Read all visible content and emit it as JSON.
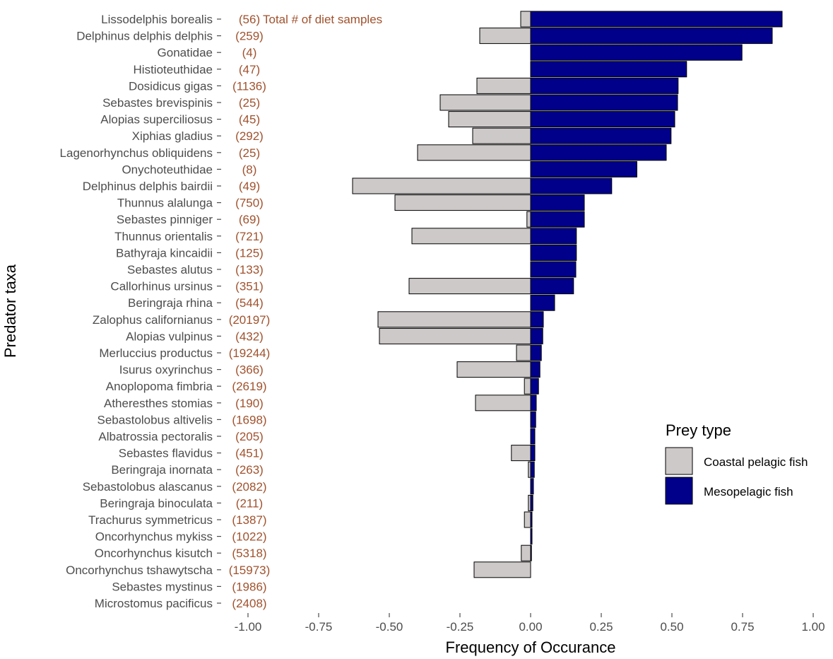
{
  "chart_data": {
    "type": "bar",
    "orientation": "horizontal",
    "xlabel": "Frequency of Occurance",
    "ylabel": "Predator taxa",
    "xlim": [
      -1.0,
      1.0
    ],
    "xticks": [
      -1.0,
      -0.75,
      -0.5,
      -0.25,
      0.0,
      0.25,
      0.5,
      0.75,
      1.0
    ],
    "xtick_labels": [
      "-1.00",
      "-0.75",
      "-0.50",
      "-0.25",
      "0.00",
      "0.25",
      "0.50",
      "0.75",
      "1.00"
    ],
    "grid": false,
    "legend_title": "Prey type",
    "legend_position": "right",
    "annotation": "Total # of diet samples",
    "categories": [
      "Lissodelphis borealis",
      "Delphinus delphis delphis",
      "Gonatidae",
      "Histioteuthidae",
      "Dosidicus gigas",
      "Sebastes brevispinis",
      "Alopias superciliosus",
      "Xiphias gladius",
      "Lagenorhynchus obliquidens",
      "Onychoteuthidae",
      "Delphinus delphis bairdii",
      "Thunnus alalunga",
      "Sebastes pinniger",
      "Thunnus orientalis",
      "Bathyraja kincaidii",
      "Sebastes alutus",
      "Callorhinus ursinus",
      "Beringraja rhina",
      "Zalophus californianus",
      "Alopias vulpinus",
      "Merluccius productus",
      "Isurus oxyrinchus",
      "Anoplopoma fimbria",
      "Atheresthes stomias",
      "Sebastolobus altivelis",
      "Albatrossia pectoralis",
      "Sebastes flavidus",
      "Beringraja inornata",
      "Sebastolobus alascanus",
      "Beringraja binoculata",
      "Trachurus symmetricus",
      "Oncorhynchus mykiss",
      "Oncorhynchus kisutch",
      "Oncorhynchus tshawytscha",
      "Sebastes mystinus",
      "Microstomus pacificus"
    ],
    "counts": [
      "(56)",
      "(259)",
      "(4)",
      "(47)",
      "(1136)",
      "(25)",
      "(45)",
      "(292)",
      "(25)",
      "(8)",
      "(49)",
      "(750)",
      "(69)",
      "(721)",
      "(125)",
      "(133)",
      "(351)",
      "(544)",
      "(20197)",
      "(432)",
      "(19244)",
      "(366)",
      "(2619)",
      "(190)",
      "(1698)",
      "(205)",
      "(451)",
      "(263)",
      "(2082)",
      "(211)",
      "(1387)",
      "(1022)",
      "(5318)",
      "(15973)",
      "(1986)",
      "(2408)"
    ],
    "series": [
      {
        "name": "Coastal pelagic fish",
        "color": "#cdc9c9",
        "values": [
          -0.035,
          -0.18,
          0.0,
          0.0,
          -0.19,
          -0.32,
          -0.29,
          -0.205,
          -0.4,
          0.0,
          -0.63,
          -0.48,
          -0.013,
          -0.42,
          0.0,
          0.0,
          -0.43,
          0.0,
          -0.54,
          -0.535,
          -0.05,
          -0.26,
          -0.022,
          -0.195,
          0.0,
          0.0,
          -0.068,
          -0.008,
          0.0,
          -0.008,
          -0.022,
          0.0,
          -0.033,
          -0.2,
          0.0,
          0.0
        ]
      },
      {
        "name": "Mesopelagic fish",
        "color": "#00008b",
        "values": [
          0.89,
          0.855,
          0.748,
          0.552,
          0.522,
          0.52,
          0.51,
          0.497,
          0.48,
          0.376,
          0.287,
          0.19,
          0.19,
          0.162,
          0.162,
          0.16,
          0.152,
          0.085,
          0.045,
          0.043,
          0.038,
          0.033,
          0.028,
          0.02,
          0.018,
          0.015,
          0.015,
          0.013,
          0.01,
          0.008,
          0.005,
          0.005,
          0.003,
          0.0,
          0.0,
          0.0
        ]
      }
    ]
  }
}
